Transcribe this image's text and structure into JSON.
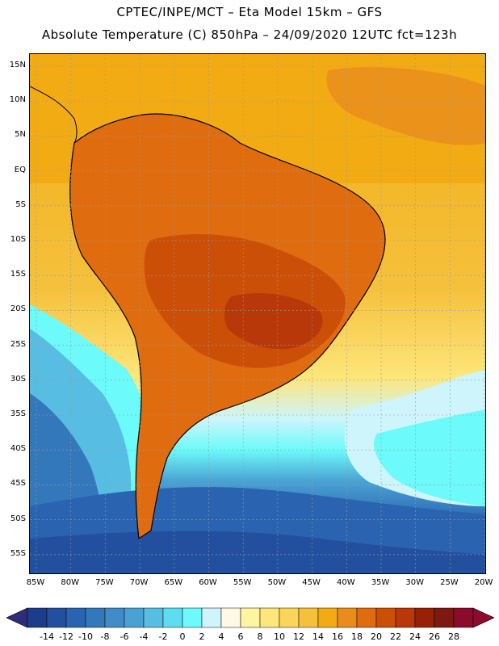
{
  "header": {
    "title_line1": "CPTEC/INPE/MCT –  Eta Model 15km – GFS",
    "title_line2": "Absolute Temperature (C) 850hPa – 24/09/2020 12UTC fct=123h"
  },
  "map": {
    "lat_labels": [
      "15N",
      "10N",
      "5N",
      "EQ",
      "5S",
      "10S",
      "15S",
      "20S",
      "25S",
      "30S",
      "35S",
      "40S",
      "45S",
      "50S",
      "55S"
    ],
    "lon_labels": [
      "85W",
      "80W",
      "75W",
      "70W",
      "65W",
      "60W",
      "55W",
      "50W",
      "45W",
      "40W",
      "35W",
      "30W",
      "25W",
      "20W"
    ]
  },
  "legend": {
    "labels": [
      "-14",
      "-12",
      "-10",
      "-8",
      "-6",
      "-4",
      "-2",
      "0",
      "2",
      "4",
      "6",
      "8",
      "10",
      "12",
      "14",
      "16",
      "18",
      "20",
      "22",
      "24",
      "26",
      "28"
    ],
    "colors": [
      "#1e3c8c",
      "#23509e",
      "#2a64b0",
      "#3478bc",
      "#3f8cc8",
      "#4aa2d4",
      "#58bde2",
      "#5edcf0",
      "#6cfafa",
      "#cdf5fb",
      "#fff8e6",
      "#fff4a0",
      "#fde67a",
      "#fbd55a",
      "#f5c13c",
      "#f3ab14",
      "#e98c1c",
      "#e06c10",
      "#cc4f08",
      "#b8380a",
      "#982006",
      "#7c1a12",
      "#8c0a2c"
    ],
    "under_color": "#2d2d78",
    "over_color": "#8c0a2c"
  },
  "colors": {
    "land_hot": "#cc4f08",
    "land_warm": "#e06c10",
    "ocean_warm": "#f3ab14",
    "ocean_cool": "#5edcf0",
    "ocean_cold": "#23509e"
  }
}
